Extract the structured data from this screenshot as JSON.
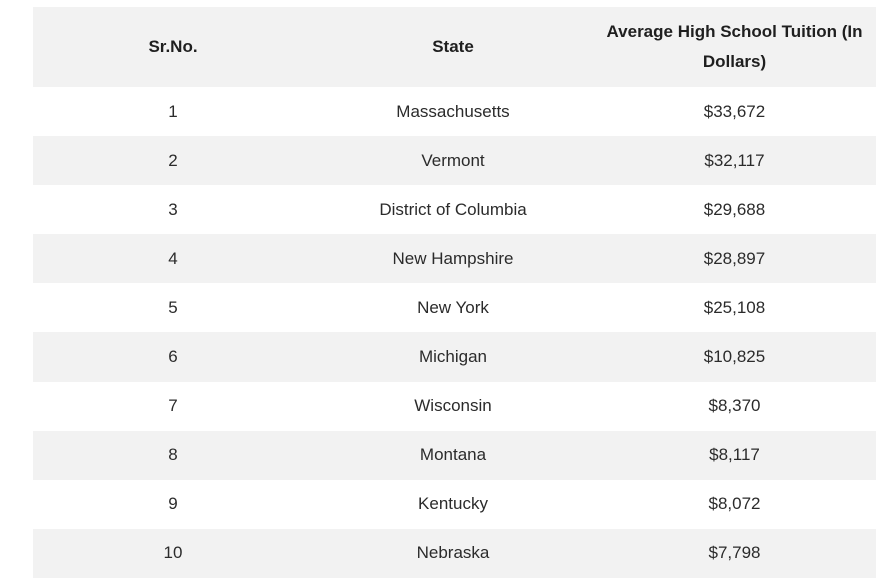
{
  "table": {
    "headers": [
      "Sr.No.",
      "State",
      "Average High School Tuition (In Dollars)"
    ],
    "rows": [
      [
        "1",
        "Massachusetts",
        "$33,672"
      ],
      [
        "2",
        "Vermont",
        "$32,117"
      ],
      [
        "3",
        "District of Columbia",
        "$29,688"
      ],
      [
        "4",
        "New Hampshire",
        "$28,897"
      ],
      [
        "5",
        "New York",
        "$25,108"
      ],
      [
        "6",
        "Michigan",
        "$10,825"
      ],
      [
        "7",
        "Wisconsin",
        "$8,370"
      ],
      [
        "8",
        "Montana",
        "$8,117"
      ],
      [
        "9",
        "Kentucky",
        "$8,072"
      ],
      [
        "10",
        "Nebraska",
        "$7,798"
      ]
    ]
  }
}
